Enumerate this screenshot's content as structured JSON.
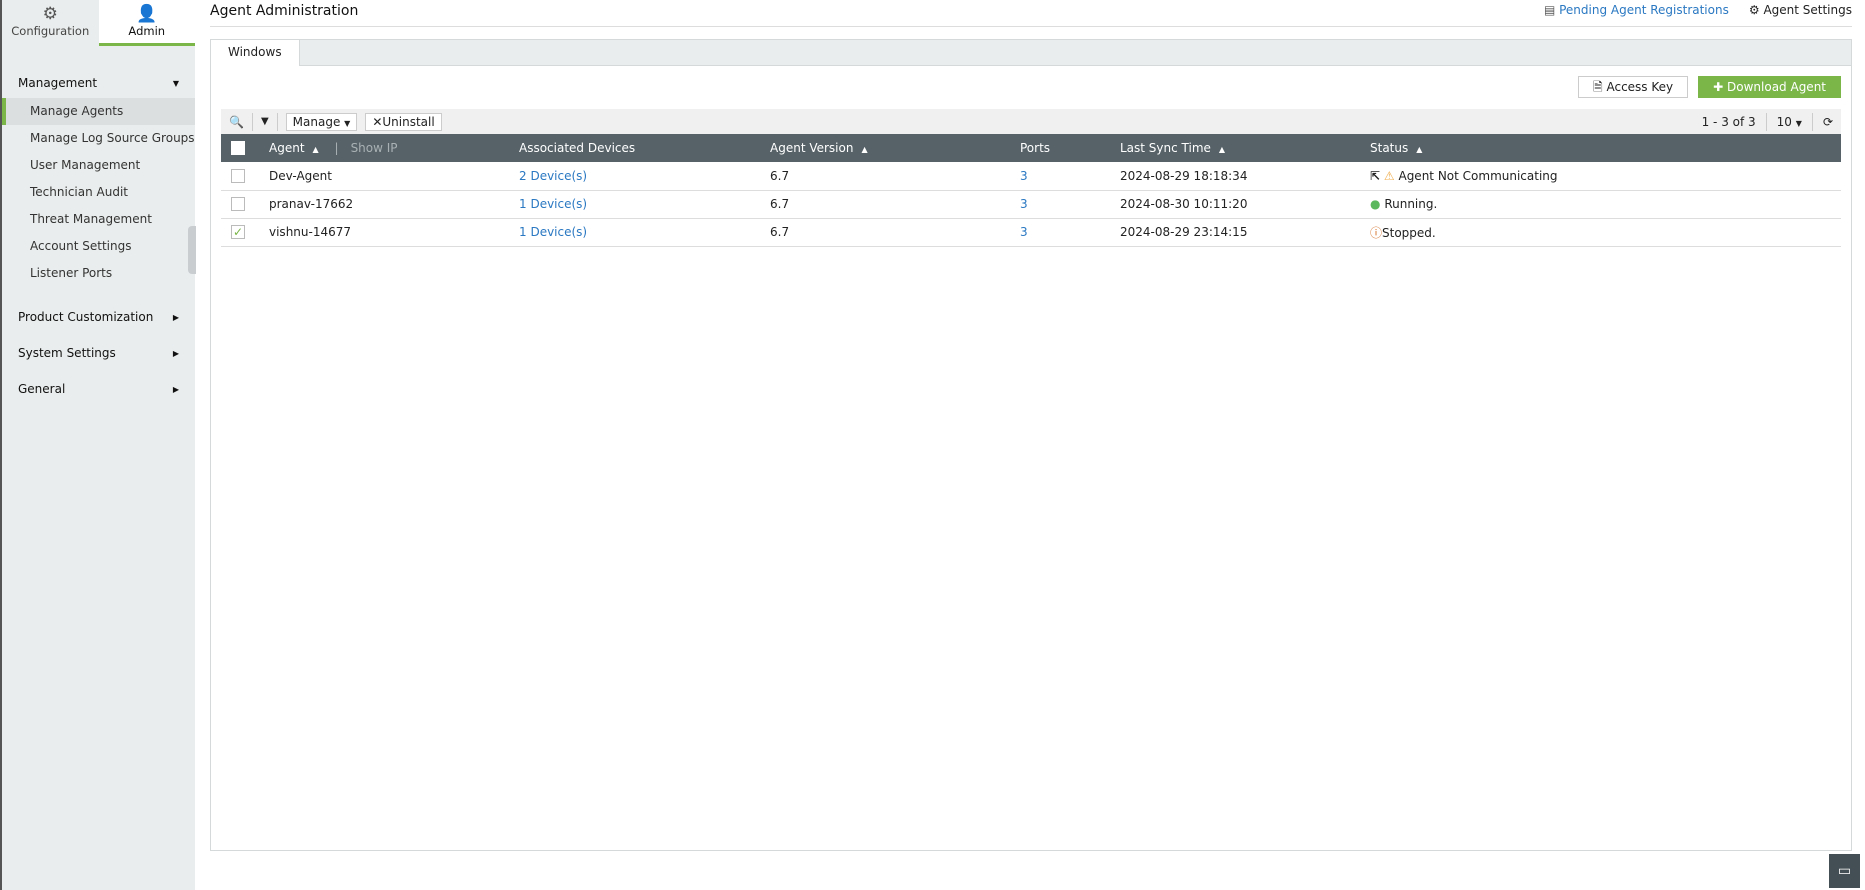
{
  "sidebar": {
    "tabs": [
      {
        "label": "Configuration",
        "icon": "gear-icon"
      },
      {
        "label": "Admin",
        "icon": "user-icon"
      }
    ],
    "sections": [
      {
        "label": "Management",
        "expanded": true,
        "items": [
          "Manage Agents",
          "Manage Log Source Groups",
          "User Management",
          "Technician Audit",
          "Threat Management",
          "Account Settings",
          "Listener Ports"
        ]
      },
      {
        "label": "Product Customization"
      },
      {
        "label": "System Settings"
      },
      {
        "label": "General"
      }
    ],
    "active_item": "Manage Agents"
  },
  "header": {
    "title": "Agent Administration",
    "pending": "Pending Agent Registrations",
    "settings": "Agent Settings"
  },
  "tabs": [
    "Windows"
  ],
  "actions": {
    "access_key": "Access Key",
    "download": "Download Agent"
  },
  "toolbar": {
    "manage": "Manage",
    "uninstall": "Uninstall",
    "pagination": "1 - 3 of 3",
    "per_page": "10"
  },
  "table": {
    "columns": {
      "agent": "Agent",
      "show_ip": "Show IP",
      "devices": "Associated Devices",
      "version": "Agent Version",
      "ports": "Ports",
      "sync": "Last Sync Time",
      "status": "Status"
    },
    "rows": [
      {
        "checked": false,
        "agent": "Dev-Agent",
        "devices": "2 Device(s)",
        "version": "6.7",
        "ports": "3",
        "sync": "2024-08-29 18:18:34",
        "status": "Agent Not Communicating",
        "status_icon": "warning-icon"
      },
      {
        "checked": false,
        "agent": "pranav-17662",
        "devices": "1 Device(s)",
        "version": "6.7",
        "ports": "3",
        "sync": "2024-08-30 10:11:20",
        "status": "Running.",
        "status_icon": "check-circle-icon"
      },
      {
        "checked": true,
        "agent": "vishnu-14677",
        "devices": "1 Device(s)",
        "version": "6.7",
        "ports": "3",
        "sync": "2024-08-29 23:14:15",
        "status": "Stopped.",
        "status_icon": "info-circle-icon"
      }
    ]
  },
  "colors": {
    "accent": "#7ab648",
    "header": "#566268",
    "link": "#2a78c2"
  }
}
